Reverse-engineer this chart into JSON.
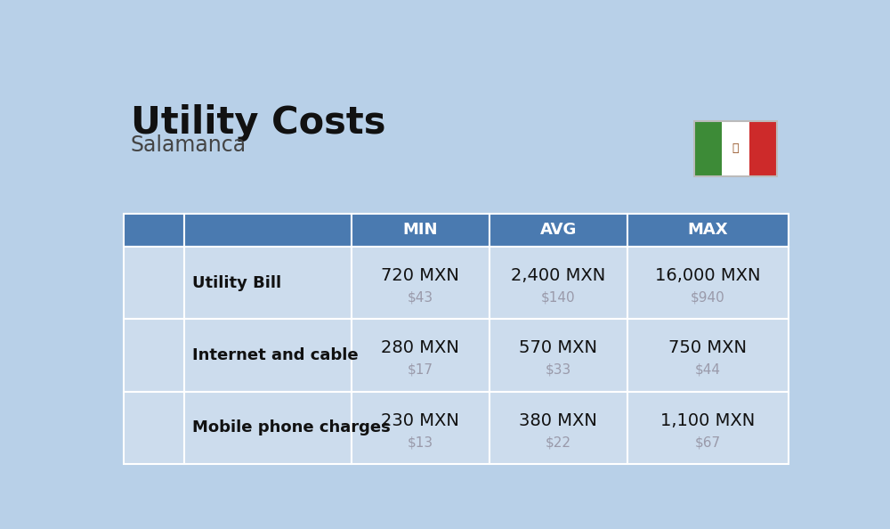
{
  "title": "Utility Costs",
  "subtitle": "Salamanca",
  "background_color": "#b8d0e8",
  "header_bg_color": "#4a7ab0",
  "header_text_color": "#ffffff",
  "row_bg_color": "#ccdced",
  "separator_color": "#ffffff",
  "col_headers": [
    "MIN",
    "AVG",
    "MAX"
  ],
  "rows": [
    {
      "label": "Utility Bill",
      "min_mxn": "720 MXN",
      "min_usd": "$43",
      "avg_mxn": "2,400 MXN",
      "avg_usd": "$140",
      "max_mxn": "16,000 MXN",
      "max_usd": "$940"
    },
    {
      "label": "Internet and cable",
      "min_mxn": "280 MXN",
      "min_usd": "$17",
      "avg_mxn": "570 MXN",
      "avg_usd": "$33",
      "max_mxn": "750 MXN",
      "max_usd": "$44"
    },
    {
      "label": "Mobile phone charges",
      "min_mxn": "230 MXN",
      "min_usd": "$13",
      "avg_mxn": "380 MXN",
      "avg_usd": "$22",
      "max_mxn": "1,100 MXN",
      "max_usd": "$67"
    }
  ],
  "title_fontsize": 30,
  "subtitle_fontsize": 17,
  "header_fontsize": 13,
  "label_fontsize": 13,
  "value_fontsize": 14,
  "usd_fontsize": 11,
  "usd_color": "#9a9aaa",
  "label_color": "#111111",
  "value_color": "#111111",
  "flag_green": "#3d8b37",
  "flag_white": "#ffffff",
  "flag_red": "#cd2a2a"
}
